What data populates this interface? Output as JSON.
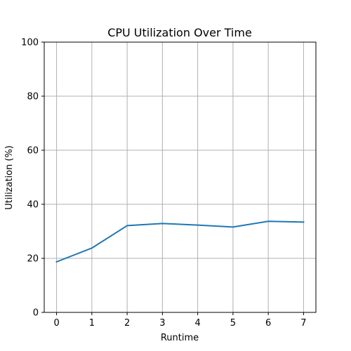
{
  "chart_data": {
    "type": "line",
    "title": "CPU Utilization Over Time",
    "xlabel": "Runtime",
    "ylabel": "Utilization (%)",
    "x": [
      0,
      1,
      2,
      3,
      4,
      5,
      6,
      7
    ],
    "xticks": [
      "0",
      "1",
      "2",
      "3",
      "4",
      "5",
      "6",
      "7"
    ],
    "yticks": [
      "0",
      "20",
      "40",
      "60",
      "80",
      "100"
    ],
    "xlim": [
      -0.35,
      7.35
    ],
    "ylim": [
      0,
      100
    ],
    "grid": true,
    "legend": "none",
    "series": [
      {
        "color": "#1f77b4",
        "values": [
          18.7,
          23.8,
          32.1,
          32.9,
          32.3,
          31.6,
          33.7,
          33.4
        ]
      }
    ]
  }
}
